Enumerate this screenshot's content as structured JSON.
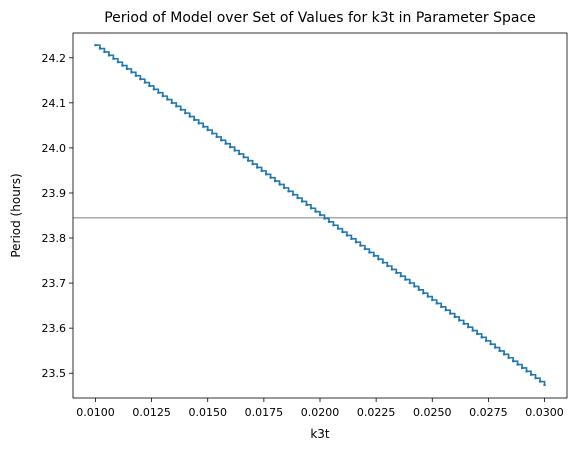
{
  "chart_data": {
    "type": "line",
    "title": "Period of Model over Set of Values for k3t in Parameter Space",
    "xlabel": "k3t",
    "ylabel": "Period (hours)",
    "xlim": [
      0.009,
      0.031
    ],
    "ylim": [
      23.445,
      24.255
    ],
    "x_ticks": [
      "0.0100",
      "0.0125",
      "0.0150",
      "0.0175",
      "0.0200",
      "0.0225",
      "0.0250",
      "0.0275",
      "0.0300"
    ],
    "x_tick_values": [
      0.01,
      0.0125,
      0.015,
      0.0175,
      0.02,
      0.0225,
      0.025,
      0.0275,
      0.03
    ],
    "y_ticks": [
      "23.5",
      "23.6",
      "23.7",
      "23.8",
      "23.9",
      "24.0",
      "24.1",
      "24.2"
    ],
    "y_tick_values": [
      23.5,
      23.6,
      23.7,
      23.8,
      23.9,
      24.0,
      24.1,
      24.2
    ],
    "grid": false,
    "series": [
      {
        "x_start": 0.01,
        "x_end": 0.03,
        "y_start": 24.228,
        "y_end": 23.474,
        "n_points": 101,
        "color": "#1f77b4",
        "style": "stepped-line"
      }
    ],
    "reference_line": {
      "orientation": "horizontal",
      "y": 23.845,
      "color": "#aaaaaa"
    }
  }
}
